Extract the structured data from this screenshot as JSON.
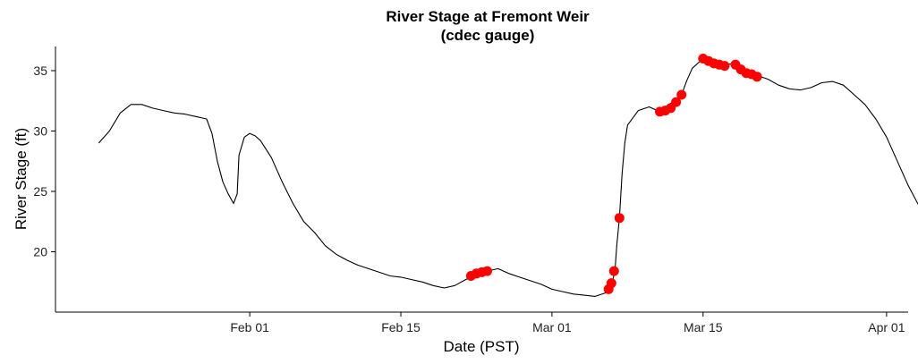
{
  "chart_data": {
    "type": "line",
    "title": "River Stage at Fremont Weir",
    "subtitle": "(cdec gauge)",
    "xlabel": "Date (PST)",
    "ylabel": "River Stage (ft)",
    "xlim": [
      "2019-01-14",
      "2019-04-03"
    ],
    "ylim": [
      15,
      37
    ],
    "grid": false,
    "x_ticks": [
      {
        "date": "2019-02-01",
        "label": "Feb 01"
      },
      {
        "date": "2019-02-15",
        "label": "Feb 15"
      },
      {
        "date": "2019-03-01",
        "label": "Mar 01"
      },
      {
        "date": "2019-03-15",
        "label": "Mar 15"
      },
      {
        "date": "2019-04-01",
        "label": "Apr 01"
      }
    ],
    "y_ticks": [
      20,
      25,
      30,
      35
    ],
    "colors": {
      "line": "#000000",
      "highlight": "#ff0000"
    },
    "series": [
      {
        "kind": "line",
        "points": [
          [
            "2019-01-18",
            29.0
          ],
          [
            "2019-01-19",
            30.0
          ],
          [
            "2019-01-20",
            31.5
          ],
          [
            "2019-01-21",
            32.2
          ],
          [
            "2019-01-22",
            32.2
          ],
          [
            "2019-01-23",
            31.9
          ],
          [
            "2019-01-24",
            31.7
          ],
          [
            "2019-01-25",
            31.5
          ],
          [
            "2019-01-26",
            31.4
          ],
          [
            "2019-01-27",
            31.2
          ],
          [
            "2019-01-28",
            31.0
          ],
          [
            "2019-01-28T12",
            29.8
          ],
          [
            "2019-01-29",
            27.5
          ],
          [
            "2019-01-29T12",
            25.8
          ],
          [
            "2019-01-30",
            24.8
          ],
          [
            "2019-01-30T12",
            24.0
          ],
          [
            "2019-01-30T20",
            24.8
          ],
          [
            "2019-01-31",
            28.0
          ],
          [
            "2019-01-31T12",
            29.5
          ],
          [
            "2019-02-01",
            29.8
          ],
          [
            "2019-02-01T12",
            29.6
          ],
          [
            "2019-02-02",
            29.2
          ],
          [
            "2019-02-03",
            27.8
          ],
          [
            "2019-02-04",
            25.8
          ],
          [
            "2019-02-05",
            24.0
          ],
          [
            "2019-02-06",
            22.5
          ],
          [
            "2019-02-07",
            21.6
          ],
          [
            "2019-02-08",
            20.5
          ],
          [
            "2019-02-09",
            19.8
          ],
          [
            "2019-02-10",
            19.3
          ],
          [
            "2019-02-11",
            18.9
          ],
          [
            "2019-02-12",
            18.6
          ],
          [
            "2019-02-13",
            18.3
          ],
          [
            "2019-02-14",
            18.0
          ],
          [
            "2019-02-15",
            17.9
          ],
          [
            "2019-02-16",
            17.7
          ],
          [
            "2019-02-17",
            17.5
          ],
          [
            "2019-02-18",
            17.2
          ],
          [
            "2019-02-19",
            17.0
          ],
          [
            "2019-02-20",
            17.2
          ],
          [
            "2019-02-21",
            17.7
          ],
          [
            "2019-02-22",
            18.1
          ],
          [
            "2019-02-23",
            18.4
          ],
          [
            "2019-02-24",
            18.6
          ],
          [
            "2019-02-25",
            18.2
          ],
          [
            "2019-02-26",
            17.9
          ],
          [
            "2019-02-27",
            17.6
          ],
          [
            "2019-02-28",
            17.3
          ],
          [
            "2019-03-01",
            16.9
          ],
          [
            "2019-03-02",
            16.7
          ],
          [
            "2019-03-03",
            16.5
          ],
          [
            "2019-03-04",
            16.4
          ],
          [
            "2019-03-05",
            16.3
          ],
          [
            "2019-03-06",
            16.6
          ],
          [
            "2019-03-06T08",
            17.0
          ],
          [
            "2019-03-06T14",
            17.5
          ],
          [
            "2019-03-06T20",
            18.4
          ],
          [
            "2019-03-07",
            20.5
          ],
          [
            "2019-03-07T06",
            22.8
          ],
          [
            "2019-03-07T12",
            26.5
          ],
          [
            "2019-03-07T18",
            29.0
          ],
          [
            "2019-03-08",
            30.5
          ],
          [
            "2019-03-09",
            31.7
          ],
          [
            "2019-03-10",
            32.0
          ],
          [
            "2019-03-11",
            31.6
          ],
          [
            "2019-03-11T12",
            31.8
          ],
          [
            "2019-03-12",
            32.3
          ],
          [
            "2019-03-13",
            33.0
          ],
          [
            "2019-03-13T12",
            34.2
          ],
          [
            "2019-03-14",
            35.2
          ],
          [
            "2019-03-15",
            36.0
          ],
          [
            "2019-03-16",
            35.8
          ],
          [
            "2019-03-17",
            35.5
          ],
          [
            "2019-03-18",
            35.6
          ],
          [
            "2019-03-19",
            35.0
          ],
          [
            "2019-03-20",
            34.6
          ],
          [
            "2019-03-21",
            34.3
          ],
          [
            "2019-03-22",
            33.8
          ],
          [
            "2019-03-23",
            33.5
          ],
          [
            "2019-03-24",
            33.4
          ],
          [
            "2019-03-25",
            33.6
          ],
          [
            "2019-03-26",
            34.0
          ],
          [
            "2019-03-27",
            34.1
          ],
          [
            "2019-03-28",
            33.8
          ],
          [
            "2019-03-29",
            33.0
          ],
          [
            "2019-03-30",
            32.2
          ],
          [
            "2019-03-31",
            31.0
          ],
          [
            "2019-04-01",
            29.5
          ],
          [
            "2019-04-02",
            27.5
          ],
          [
            "2019-04-03",
            25.5
          ],
          [
            "2019-04-04",
            23.8
          ]
        ]
      },
      {
        "kind": "points",
        "points": [
          [
            "2019-02-21T12",
            18.0
          ],
          [
            "2019-02-22",
            18.2
          ],
          [
            "2019-02-22T12",
            18.3
          ],
          [
            "2019-02-23",
            18.4
          ],
          [
            "2019-03-06T06",
            16.9
          ],
          [
            "2019-03-06T12",
            17.4
          ],
          [
            "2019-03-06T18",
            18.4
          ],
          [
            "2019-03-07T06",
            22.8
          ],
          [
            "2019-03-11",
            31.6
          ],
          [
            "2019-03-11T12",
            31.7
          ],
          [
            "2019-03-12",
            31.9
          ],
          [
            "2019-03-12T12",
            32.4
          ],
          [
            "2019-03-13",
            33.0
          ],
          [
            "2019-03-15",
            36.0
          ],
          [
            "2019-03-15T12",
            35.8
          ],
          [
            "2019-03-16",
            35.6
          ],
          [
            "2019-03-16T12",
            35.5
          ],
          [
            "2019-03-17",
            35.4
          ],
          [
            "2019-03-18",
            35.5
          ],
          [
            "2019-03-18T12",
            35.1
          ],
          [
            "2019-03-19",
            34.8
          ],
          [
            "2019-03-19T12",
            34.7
          ],
          [
            "2019-03-20",
            34.5
          ]
        ]
      }
    ]
  }
}
